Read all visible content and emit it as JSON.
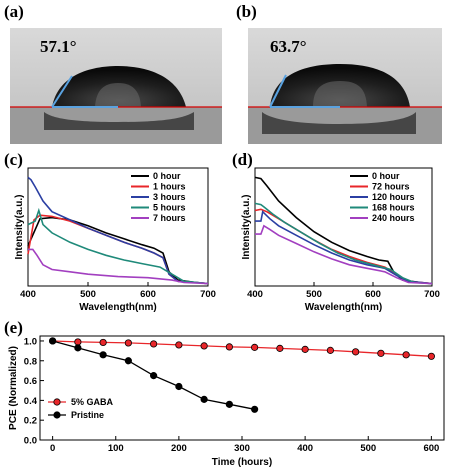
{
  "panels": {
    "a": {
      "label": "(a)",
      "angle": "57.1°"
    },
    "b": {
      "label": "(b)",
      "angle": "63.7°"
    },
    "c": {
      "label": "(c)"
    },
    "d": {
      "label": "(d)"
    },
    "e": {
      "label": "(e)"
    }
  },
  "colors": {
    "black": "#000000",
    "red": "#e8262a",
    "blue": "#2b3fa3",
    "purple": "#a23fc0",
    "teal": "#1f8a7a",
    "image_bg": "#c9c9c9",
    "baseline": "#d40000",
    "tangent": "#5aa2e0"
  },
  "chart_data": [
    {
      "panel": "c",
      "type": "line",
      "xlabel": "Wavelength(nm)",
      "ylabel": "Intensity(a.u.)",
      "xlim": [
        400,
        700
      ],
      "xticks": [
        400,
        500,
        600,
        700
      ],
      "legend_position": "top-right",
      "series": [
        {
          "name": "0 hour",
          "color": "#000000",
          "x": [
            400,
            420,
            440,
            470,
            500,
            530,
            560,
            590,
            610,
            625,
            635,
            650,
            680,
            700
          ],
          "y": [
            0.34,
            0.57,
            0.58,
            0.56,
            0.51,
            0.45,
            0.4,
            0.35,
            0.32,
            0.28,
            0.12,
            0.05,
            0.03,
            0.02
          ]
        },
        {
          "name": "1 hours",
          "color": "#e8262a",
          "x": [
            400,
            410,
            420,
            440,
            470,
            500,
            530,
            560,
            590,
            610,
            625,
            635,
            650,
            680,
            700
          ],
          "y": [
            0.27,
            0.56,
            0.6,
            0.59,
            0.55,
            0.49,
            0.43,
            0.37,
            0.32,
            0.28,
            0.24,
            0.1,
            0.04,
            0.03,
            0.02
          ]
        },
        {
          "name": "3 hours",
          "color": "#2b3fa3",
          "x": [
            400,
            405,
            412,
            425,
            440,
            470,
            500,
            530,
            560,
            590,
            610,
            625,
            635,
            650,
            680,
            700
          ],
          "y": [
            0.92,
            0.9,
            0.84,
            0.72,
            0.63,
            0.56,
            0.49,
            0.43,
            0.37,
            0.32,
            0.28,
            0.24,
            0.1,
            0.04,
            0.03,
            0.02
          ]
        },
        {
          "name": "5 hours",
          "color": "#1f8a7a",
          "x": [
            400,
            412,
            418,
            425,
            440,
            470,
            500,
            530,
            560,
            590,
            620,
            640,
            660,
            700
          ],
          "y": [
            0.52,
            0.55,
            0.64,
            0.52,
            0.45,
            0.37,
            0.31,
            0.26,
            0.22,
            0.19,
            0.16,
            0.1,
            0.04,
            0.02
          ]
        },
        {
          "name": "7 hours",
          "color": "#a23fc0",
          "x": [
            400,
            408,
            415,
            425,
            440,
            470,
            500,
            550,
            600,
            640,
            660,
            700
          ],
          "y": [
            0.31,
            0.31,
            0.26,
            0.18,
            0.14,
            0.12,
            0.1,
            0.08,
            0.07,
            0.05,
            0.03,
            0.02
          ]
        }
      ]
    },
    {
      "panel": "d",
      "type": "line",
      "xlabel": "Wavelength(nm)",
      "ylabel": "Intensity(a.u.)",
      "xlim": [
        400,
        700
      ],
      "xticks": [
        400,
        500,
        600,
        700
      ],
      "legend_position": "top-right",
      "series": [
        {
          "name": "0 hour",
          "color": "#000000",
          "x": [
            400,
            410,
            420,
            440,
            470,
            500,
            530,
            560,
            590,
            610,
            625,
            635,
            650,
            680,
            700
          ],
          "y": [
            0.92,
            0.91,
            0.85,
            0.72,
            0.58,
            0.46,
            0.37,
            0.3,
            0.25,
            0.22,
            0.21,
            0.12,
            0.05,
            0.03,
            0.02
          ]
        },
        {
          "name": "72 hours",
          "color": "#e8262a",
          "x": [
            400,
            410,
            420,
            440,
            470,
            500,
            530,
            560,
            590,
            620,
            640,
            660,
            700
          ],
          "y": [
            0.64,
            0.65,
            0.63,
            0.57,
            0.48,
            0.39,
            0.31,
            0.25,
            0.2,
            0.16,
            0.1,
            0.04,
            0.02
          ]
        },
        {
          "name": "120 hours",
          "color": "#2b3fa3",
          "x": [
            400,
            410,
            413,
            425,
            440,
            470,
            500,
            530,
            560,
            590,
            620,
            640,
            660,
            700
          ],
          "y": [
            0.55,
            0.55,
            0.63,
            0.57,
            0.51,
            0.43,
            0.35,
            0.28,
            0.22,
            0.18,
            0.15,
            0.09,
            0.04,
            0.02
          ]
        },
        {
          "name": "168 hours",
          "color": "#1f8a7a",
          "x": [
            400,
            410,
            415,
            430,
            450,
            480,
            510,
            540,
            570,
            600,
            630,
            650,
            670,
            700
          ],
          "y": [
            0.7,
            0.69,
            0.67,
            0.61,
            0.54,
            0.45,
            0.36,
            0.28,
            0.22,
            0.18,
            0.14,
            0.07,
            0.03,
            0.02
          ]
        },
        {
          "name": "240 hours",
          "color": "#a23fc0",
          "x": [
            400,
            410,
            415,
            425,
            440,
            470,
            500,
            530,
            560,
            590,
            620,
            640,
            660,
            700
          ],
          "y": [
            0.44,
            0.44,
            0.51,
            0.48,
            0.43,
            0.36,
            0.29,
            0.23,
            0.18,
            0.15,
            0.12,
            0.07,
            0.03,
            0.02
          ]
        }
      ]
    },
    {
      "panel": "e",
      "type": "line",
      "xlabel": "Time (hours)",
      "ylabel": "PCE (Normalized)",
      "xlim": [
        -20,
        620
      ],
      "ylim": [
        0.0,
        1.05
      ],
      "xticks": [
        0,
        100,
        200,
        300,
        400,
        500,
        600
      ],
      "yticks": [
        0.0,
        0.2,
        0.4,
        0.6,
        0.8,
        1.0
      ],
      "legend_position": "bottom-left",
      "series": [
        {
          "name": "5% GABA",
          "color": "#e8262a",
          "marker": "circle",
          "x": [
            0,
            40,
            80,
            120,
            160,
            200,
            240,
            280,
            320,
            360,
            400,
            440,
            480,
            520,
            560,
            600
          ],
          "y": [
            1.0,
            0.99,
            0.985,
            0.98,
            0.97,
            0.96,
            0.95,
            0.94,
            0.935,
            0.925,
            0.915,
            0.905,
            0.89,
            0.875,
            0.86,
            0.845
          ]
        },
        {
          "name": "Pristine",
          "color": "#000000",
          "marker": "circle",
          "x": [
            0,
            40,
            80,
            120,
            160,
            200,
            240,
            280,
            320
          ],
          "y": [
            1.0,
            0.93,
            0.86,
            0.8,
            0.65,
            0.54,
            0.41,
            0.36,
            0.31
          ]
        }
      ]
    }
  ]
}
